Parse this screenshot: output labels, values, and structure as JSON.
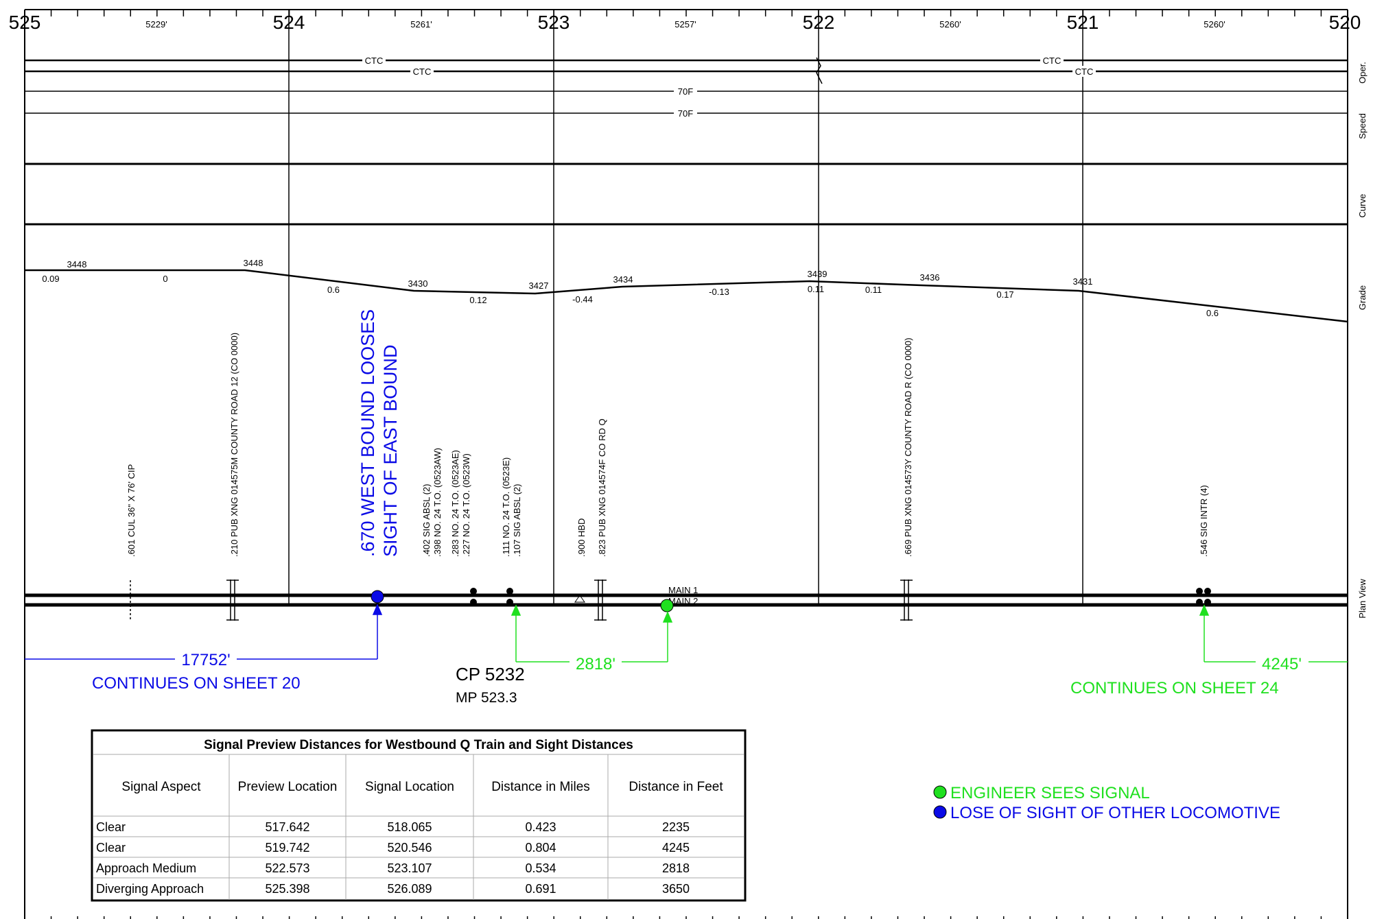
{
  "mileposts": [
    "525",
    "524",
    "523",
    "522",
    "521",
    "520"
  ],
  "segment_lengths": [
    "5229'",
    "5261'",
    "5257'",
    "5260'",
    "5260'"
  ],
  "lanes": {
    "operation": "Oper.",
    "speed": "Speed",
    "curve": "Curve",
    "grade": "Grade",
    "plan": "Plan View"
  },
  "oper_labels": {
    "ctc1a": "CTC",
    "ctc2a": "CTC",
    "ctc1b": "CTC",
    "ctc2b": "CTC",
    "spd1": "70F",
    "spd2": "70F"
  },
  "elevations": [
    "3448",
    "3448",
    "3430",
    "3427",
    "3434",
    "3439",
    "3436",
    "3431"
  ],
  "grades": [
    "0.09",
    "0",
    "0.6",
    "0.12",
    "-0.44",
    "-0.13",
    "0.11",
    "0.11",
    "0.17",
    "0.6"
  ],
  "features": [
    ".601 CUL 36\" X 76' CIP",
    ".210 PUB XNG 014575M COUNTY ROAD 12 (CO 0000)",
    ".402 SIG ABSL (2)",
    ".398 NO. 24 T.O. (0523AW)",
    ".283 NO. 24 T.O. (0523AE)",
    ".227 NO. 24 T.O. (0523W)",
    ".111 NO. 24 T.O. (0523E)",
    ".107 SIG ABSL (2)",
    ".900 HBD",
    ".823 PUB XNG 014574F CO RD Q",
    ".669 PUB XNG 014573Y COUNTY ROAD R (CO 0000)",
    ".546 SIG INTR (4)"
  ],
  "sight_note": {
    "line1": ".670 WEST BOUND LOOSES",
    "line2": "SIGHT OF EAST BOUND"
  },
  "tracks": {
    "main1": "MAIN 1",
    "main2": "MAIN 2"
  },
  "dims": {
    "blue_distance": "17752'",
    "green_distance": "2818'",
    "right_distance": "4245'"
  },
  "continues": {
    "left": "CONTINUES ON SHEET 20",
    "right": "CONTINUES ON SHEET 24"
  },
  "cp": {
    "name": "CP 5232",
    "mp": "MP 523.3"
  },
  "legend": {
    "green": "ENGINEER SEES SIGNAL",
    "blue": "LOSE OF SIGHT OF OTHER LOCOMOTIVE"
  },
  "colors": {
    "blue": "#0a0ae6",
    "green": "#1fe01f",
    "line": "#000000"
  },
  "table": {
    "title": "Signal Preview Distances for Westbound Q Train and Sight Distances",
    "headers": [
      "Signal Aspect",
      "Preview Location",
      "Signal Location",
      "Distance in Miles",
      "Distance in Feet"
    ],
    "rows": [
      [
        "Clear",
        "517.642",
        "518.065",
        "0.423",
        "2235"
      ],
      [
        "Clear",
        "519.742",
        "520.546",
        "0.804",
        "4245"
      ],
      [
        "Approach Medium",
        "522.573",
        "523.107",
        "0.534",
        "2818"
      ],
      [
        "Diverging Approach",
        "525.398",
        "526.089",
        "0.691",
        "3650"
      ]
    ]
  }
}
